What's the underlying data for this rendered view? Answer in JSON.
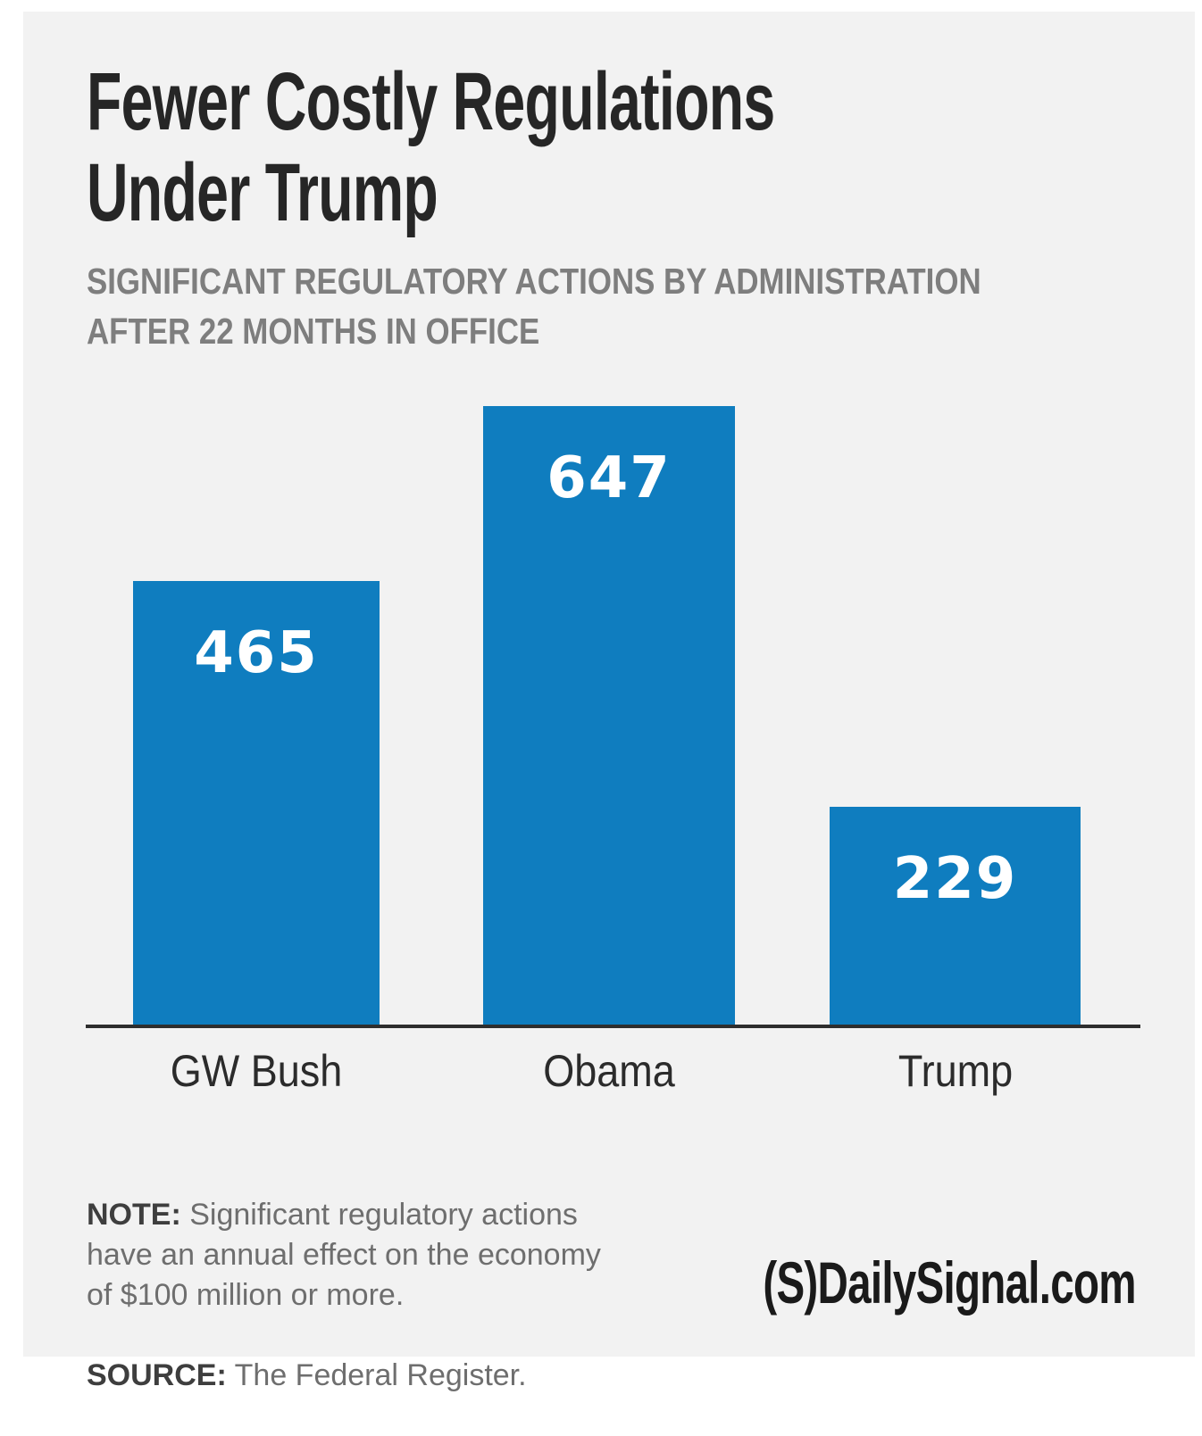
{
  "page": {
    "background_color": "#ffffff",
    "card_background_color": "#f2f2f2"
  },
  "header": {
    "title": "Fewer Costly Regulations\nUnder Trump",
    "subtitle": "SIGNIFICANT REGULATORY ACTIONS BY ADMINISTRATION\nAFTER 22 MONTHS IN OFFICE"
  },
  "chart_data": {
    "type": "bar",
    "title": "Fewer Costly Regulations Under Trump",
    "subtitle": "Significant regulatory actions by administration after 22 months in office",
    "categories": [
      "GW Bush",
      "Obama",
      "Trump"
    ],
    "values": [
      465,
      647,
      229
    ],
    "xlabel": "",
    "ylabel": "",
    "ylim": [
      0,
      700
    ],
    "grid": false,
    "legend": false,
    "bar_color": "#0f7dbf",
    "value_label_color": "#ffffff",
    "axis_line_color": "#2e2e2e",
    "value_labels_inside_bars": true
  },
  "footer": {
    "note_label": "NOTE:",
    "note_text": "Significant regulatory actions\nhave an annual effect on the economy\nof $100 million or more.",
    "source_label": "SOURCE:",
    "source_text": "The Federal Register.",
    "logo_text": "(S)DailySignal.com"
  }
}
